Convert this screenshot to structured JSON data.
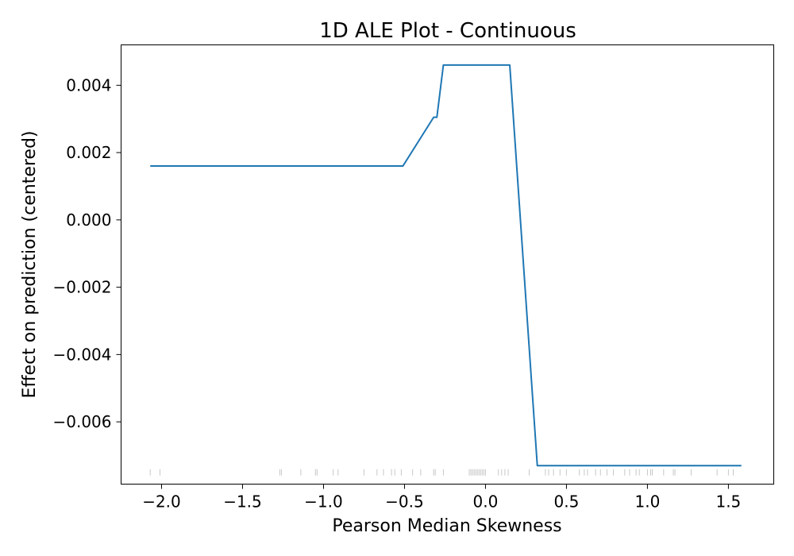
{
  "chart_data": {
    "type": "line",
    "title": "1D ALE Plot - Continuous",
    "xlabel": "Pearson Median Skewness",
    "ylabel": "Effect on prediction (centered)",
    "xlim": [
      -2.25,
      1.78
    ],
    "ylim": [
      -0.00785,
      0.0052
    ],
    "x_ticks": [
      -2.0,
      -1.5,
      -1.0,
      -0.5,
      0.0,
      0.5,
      1.0,
      1.5
    ],
    "x_tick_labels": [
      "−2.0",
      "−1.5",
      "−1.0",
      "−0.5",
      "0.0",
      "0.5",
      "1.0",
      "1.5"
    ],
    "y_ticks": [
      0.004,
      0.002,
      0.0,
      -0.002,
      -0.004,
      -0.006
    ],
    "y_tick_labels": [
      "0.004",
      "0.002",
      "0.000",
      "−0.002",
      "−0.004",
      "−0.006"
    ],
    "grid": false,
    "series": [
      {
        "color": "#1f77b4",
        "x": [
          -2.07,
          -0.51,
          -0.32,
          -0.3,
          -0.26,
          0.15,
          0.32,
          1.58
        ],
        "y": [
          0.0016,
          0.0016,
          0.00305,
          0.00305,
          0.0046,
          0.0046,
          -0.0073,
          -0.0073
        ]
      }
    ],
    "rug": {
      "color": "#000000",
      "y": -0.0075,
      "x": [
        -2.07,
        -2.01,
        -1.27,
        -1.26,
        -1.14,
        -1.05,
        -1.04,
        -0.94,
        -0.91,
        -0.75,
        -0.67,
        -0.63,
        -0.58,
        -0.56,
        -0.52,
        -0.45,
        -0.4,
        -0.32,
        -0.31,
        -0.26,
        -0.1,
        -0.09,
        -0.08,
        -0.07,
        -0.06,
        -0.05,
        -0.04,
        -0.03,
        -0.02,
        -0.01,
        0.0,
        0.08,
        0.1,
        0.12,
        0.14,
        0.27,
        0.37,
        0.39,
        0.42,
        0.46,
        0.5,
        0.58,
        0.61,
        0.63,
        0.68,
        0.71,
        0.75,
        0.79,
        0.86,
        0.89,
        0.93,
        0.95,
        1.0,
        1.02,
        1.03,
        1.1,
        1.16,
        1.17,
        1.27,
        1.43,
        1.5,
        1.53
      ]
    }
  }
}
